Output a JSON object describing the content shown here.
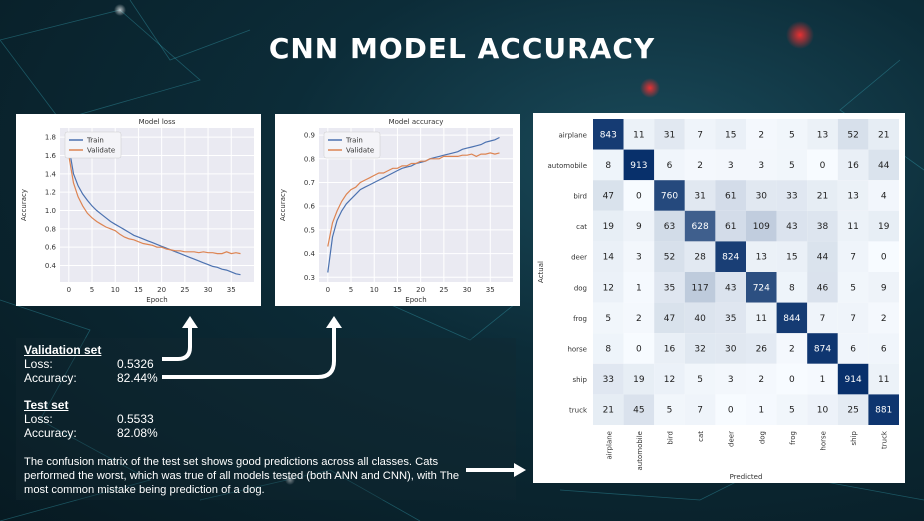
{
  "page": {
    "title": "CNN MODEL ACCURACY"
  },
  "validation": {
    "heading": "Validation set",
    "loss_label": "Loss:",
    "loss_value": "0.5326",
    "acc_label": "Accuracy:",
    "acc_value": "82.44%"
  },
  "test": {
    "heading": "Test set",
    "loss_label": "Loss:",
    "loss_value": "0.5533",
    "acc_label": "Accuracy:",
    "acc_value": "82.08%"
  },
  "description": "The confusion matrix of the test set shows good predictions across all classes. Cats performed the worst, which was true of all models tested (both ANN and CNN), with The most common mistake being prediction of a dog.",
  "colors": {
    "train": "#4c72b0",
    "validate": "#dd8452",
    "plot_bg": "#eaeaf2",
    "cm_high": "#08306b",
    "cm_low": "#f7fbff"
  },
  "chart_data": [
    {
      "type": "line",
      "title": "Model loss",
      "xlabel": "Epoch",
      "ylabel": "Accuracy",
      "xlim": [
        -1.9,
        39.9
      ],
      "ylim": [
        0.22,
        1.9
      ],
      "xticks": [
        0,
        5,
        10,
        15,
        20,
        25,
        30,
        35
      ],
      "yticks": [
        0.4,
        0.6,
        0.8,
        1.0,
        1.2,
        1.4,
        1.6,
        1.8
      ],
      "ytick_labels": [
        "0.4",
        "0.6",
        "0.8",
        "1.0",
        "1.2",
        "1.4",
        "1.6",
        "1.8"
      ],
      "legend": [
        "Train",
        "Validate"
      ],
      "legend_position": "top-left",
      "series": [
        {
          "name": "Train",
          "x": [
            0,
            1,
            2,
            3,
            4,
            5,
            6,
            7,
            8,
            9,
            10,
            11,
            12,
            13,
            14,
            15,
            16,
            17,
            18,
            19,
            20,
            21,
            22,
            23,
            24,
            25,
            26,
            27,
            28,
            29,
            30,
            31,
            32,
            33,
            34,
            35,
            36,
            37
          ],
          "values": [
            1.7,
            1.4,
            1.27,
            1.18,
            1.11,
            1.05,
            1.0,
            0.96,
            0.92,
            0.88,
            0.85,
            0.82,
            0.79,
            0.76,
            0.73,
            0.71,
            0.69,
            0.67,
            0.65,
            0.63,
            0.61,
            0.59,
            0.57,
            0.55,
            0.53,
            0.51,
            0.49,
            0.47,
            0.45,
            0.43,
            0.41,
            0.39,
            0.38,
            0.36,
            0.35,
            0.33,
            0.31,
            0.3
          ]
        },
        {
          "name": "Validate",
          "x": [
            0,
            1,
            2,
            3,
            4,
            5,
            6,
            7,
            8,
            9,
            10,
            11,
            12,
            13,
            14,
            15,
            16,
            17,
            18,
            19,
            20,
            21,
            22,
            23,
            24,
            25,
            26,
            27,
            28,
            29,
            30,
            31,
            32,
            33,
            34,
            35,
            36,
            37
          ],
          "values": [
            1.6,
            1.3,
            1.15,
            1.05,
            0.97,
            0.92,
            0.88,
            0.85,
            0.82,
            0.8,
            0.78,
            0.74,
            0.71,
            0.69,
            0.68,
            0.66,
            0.64,
            0.63,
            0.62,
            0.6,
            0.6,
            0.58,
            0.57,
            0.56,
            0.56,
            0.55,
            0.55,
            0.55,
            0.54,
            0.55,
            0.54,
            0.54,
            0.53,
            0.53,
            0.55,
            0.53,
            0.54,
            0.53
          ]
        }
      ]
    },
    {
      "type": "line",
      "title": "Model accuracy",
      "xlabel": "Epoch",
      "ylabel": "Accuracy",
      "xlim": [
        -1.9,
        39.9
      ],
      "ylim": [
        0.28,
        0.93
      ],
      "xticks": [
        0,
        5,
        10,
        15,
        20,
        25,
        30,
        35
      ],
      "yticks": [
        0.3,
        0.4,
        0.5,
        0.6,
        0.7,
        0.8,
        0.9
      ],
      "ytick_labels": [
        "0.3",
        "0.4",
        "0.5",
        "0.6",
        "0.7",
        "0.8",
        "0.9"
      ],
      "legend": [
        "Train",
        "Validate"
      ],
      "legend_position": "top-left",
      "series": [
        {
          "name": "Train",
          "x": [
            0,
            1,
            2,
            3,
            4,
            5,
            6,
            7,
            8,
            9,
            10,
            11,
            12,
            13,
            14,
            15,
            16,
            17,
            18,
            19,
            20,
            21,
            22,
            23,
            24,
            25,
            26,
            27,
            28,
            29,
            30,
            31,
            32,
            33,
            34,
            35,
            36,
            37
          ],
          "values": [
            0.32,
            0.47,
            0.54,
            0.58,
            0.61,
            0.63,
            0.65,
            0.67,
            0.68,
            0.69,
            0.7,
            0.71,
            0.72,
            0.73,
            0.74,
            0.75,
            0.76,
            0.765,
            0.77,
            0.78,
            0.785,
            0.79,
            0.8,
            0.805,
            0.81,
            0.815,
            0.82,
            0.825,
            0.83,
            0.84,
            0.845,
            0.85,
            0.855,
            0.86,
            0.87,
            0.875,
            0.88,
            0.89
          ]
        },
        {
          "name": "Validate",
          "x": [
            0,
            1,
            2,
            3,
            4,
            5,
            6,
            7,
            8,
            9,
            10,
            11,
            12,
            13,
            14,
            15,
            16,
            17,
            18,
            19,
            20,
            21,
            22,
            23,
            24,
            25,
            26,
            27,
            28,
            29,
            30,
            31,
            32,
            33,
            34,
            35,
            36,
            37
          ],
          "values": [
            0.43,
            0.53,
            0.58,
            0.62,
            0.65,
            0.67,
            0.68,
            0.7,
            0.71,
            0.72,
            0.73,
            0.74,
            0.74,
            0.75,
            0.76,
            0.76,
            0.77,
            0.77,
            0.78,
            0.78,
            0.79,
            0.79,
            0.8,
            0.8,
            0.8,
            0.81,
            0.81,
            0.81,
            0.81,
            0.815,
            0.815,
            0.82,
            0.81,
            0.82,
            0.82,
            0.825,
            0.82,
            0.825
          ]
        }
      ]
    },
    {
      "type": "heatmap",
      "title": "",
      "xlabel": "Predicted",
      "ylabel": "Actual",
      "x_categories": [
        "airplane",
        "automobile",
        "bird",
        "cat",
        "deer",
        "dog",
        "frog",
        "horse",
        "ship",
        "truck"
      ],
      "y_categories": [
        "airplane",
        "automobile",
        "bird",
        "cat",
        "deer",
        "dog",
        "frog",
        "horse",
        "ship",
        "truck"
      ],
      "matrix": [
        [
          843,
          11,
          31,
          7,
          15,
          2,
          5,
          13,
          52,
          21
        ],
        [
          8,
          913,
          6,
          2,
          3,
          3,
          5,
          0,
          16,
          44
        ],
        [
          47,
          0,
          760,
          31,
          61,
          30,
          33,
          21,
          13,
          4
        ],
        [
          19,
          9,
          63,
          628,
          61,
          109,
          43,
          38,
          11,
          19
        ],
        [
          14,
          3,
          52,
          28,
          824,
          13,
          15,
          44,
          7,
          0
        ],
        [
          12,
          1,
          35,
          117,
          43,
          724,
          8,
          46,
          5,
          9
        ],
        [
          5,
          2,
          47,
          40,
          35,
          11,
          844,
          7,
          7,
          2
        ],
        [
          8,
          0,
          16,
          32,
          30,
          26,
          2,
          874,
          6,
          6
        ],
        [
          33,
          19,
          12,
          5,
          3,
          2,
          0,
          1,
          914,
          11
        ],
        [
          21,
          45,
          5,
          7,
          0,
          1,
          5,
          10,
          25,
          881
        ]
      ],
      "vmax": 914
    }
  ]
}
